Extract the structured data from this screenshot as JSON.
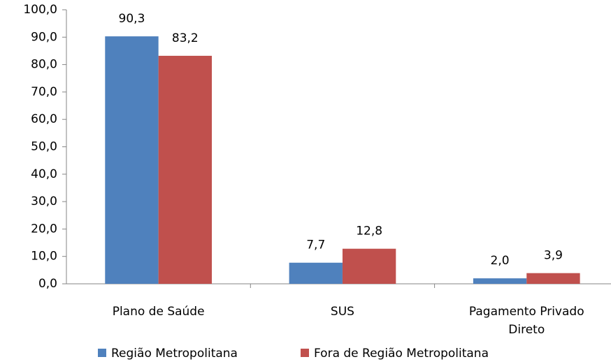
{
  "chart_data": {
    "type": "bar",
    "categories": [
      "Plano de Saúde",
      "SUS",
      "Pagamento Privado Direto"
    ],
    "series": [
      {
        "name": "Região Metropolitana",
        "color": "#4f81bd",
        "values": [
          90.3,
          7.7,
          2.0
        ],
        "value_labels": [
          "90,3",
          "7,7",
          "2,0"
        ]
      },
      {
        "name": "Fora de Região Metropolitana",
        "color": "#c0504d",
        "values": [
          83.2,
          12.8,
          3.9
        ],
        "value_labels": [
          "83,2",
          "12,8",
          "3,9"
        ]
      }
    ],
    "ylim": [
      0,
      100
    ],
    "yticks": [
      {
        "value": 0,
        "label": "0,0"
      },
      {
        "value": 10,
        "label": "10,0"
      },
      {
        "value": 20,
        "label": "20,0"
      },
      {
        "value": 30,
        "label": "30,0"
      },
      {
        "value": 40,
        "label": "40,0"
      },
      {
        "value": 50,
        "label": "50,0"
      },
      {
        "value": 60,
        "label": "60,0"
      },
      {
        "value": 70,
        "label": "70,0"
      },
      {
        "value": 80,
        "label": "80,0"
      },
      {
        "value": 90,
        "label": "90,0"
      },
      {
        "value": 100,
        "label": "100,0"
      }
    ],
    "grid": false,
    "legend": "bottom"
  }
}
